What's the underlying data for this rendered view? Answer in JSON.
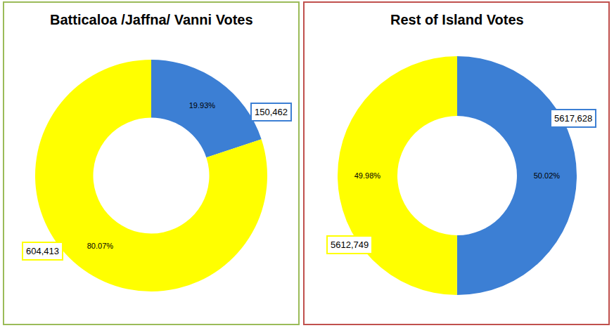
{
  "chart_data": [
    {
      "type": "pie",
      "title": "Batticaloa /Jaffna/ Vanni Votes",
      "values": [
        19.93,
        80.07
      ],
      "value_labels": [
        "19.93%",
        "80.07%"
      ],
      "votes": [
        150462,
        604413
      ],
      "vote_labels": [
        "150,462",
        "604,413"
      ],
      "colors": [
        "#3c7fd4",
        "#ffff00"
      ],
      "data_labels": true
    },
    {
      "type": "pie",
      "title": "Rest of Island Votes",
      "values": [
        50.02,
        49.98
      ],
      "value_labels": [
        "50.02%",
        "49.98%"
      ],
      "votes": [
        5617628,
        5612749
      ],
      "vote_labels": [
        "5617,628",
        "5612,749"
      ],
      "colors": [
        "#3c7fd4",
        "#ffff00"
      ],
      "data_labels": true
    }
  ]
}
